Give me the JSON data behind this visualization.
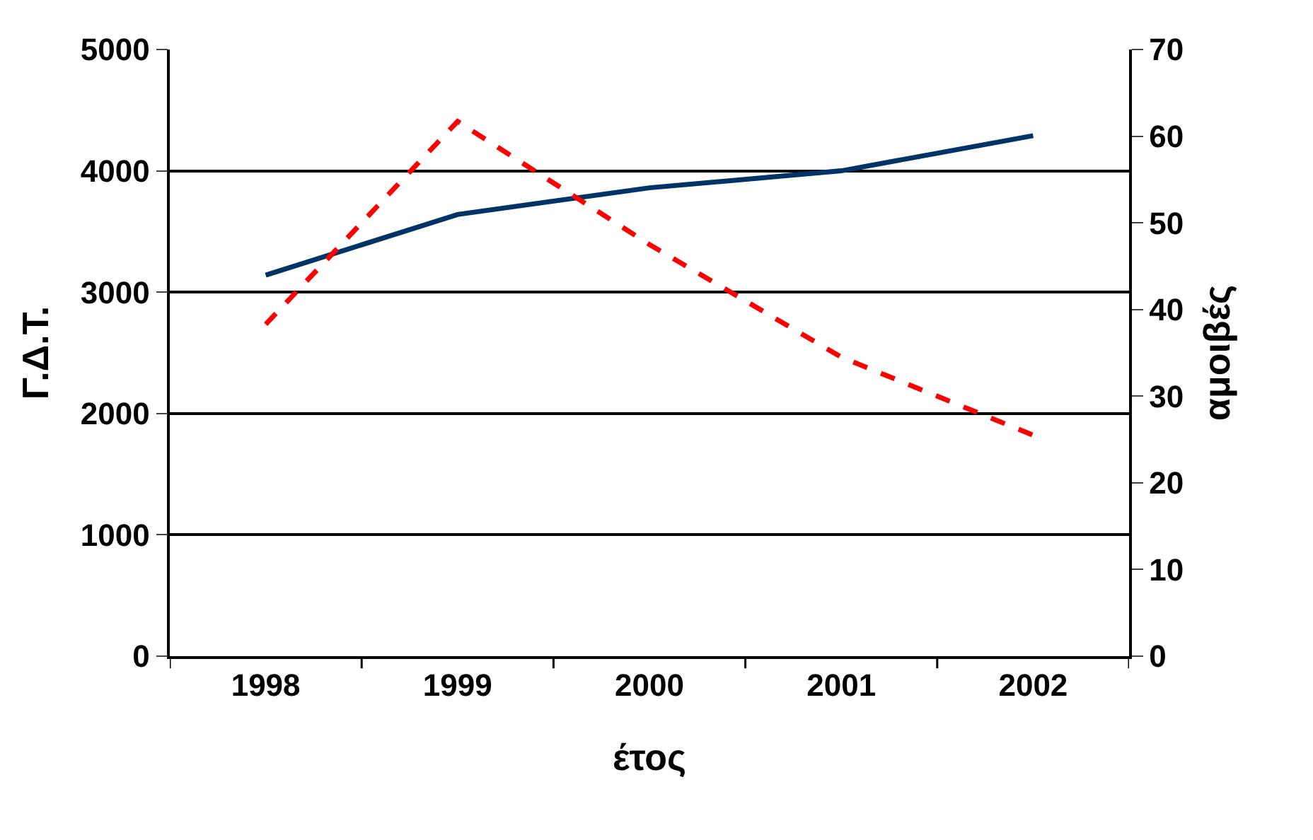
{
  "chart_data": {
    "type": "line",
    "xlabel": "έτος",
    "ylabel": "Γ.Δ.Τ.",
    "y2label": "αμοιβές",
    "categories": [
      "1998",
      "1999",
      "2000",
      "2001",
      "2002"
    ],
    "series": [
      {
        "color": "#003366",
        "line_style": "solid",
        "values": [
          3140,
          3640,
          3860,
          4000,
          4290
        ]
      },
      {
        "color": "#ff0000",
        "line_style": "dashed",
        "axis": "y2",
        "values": [
          38.3,
          61.7,
          47.5,
          34.5,
          25.5
        ]
      }
    ],
    "ylim": [
      0,
      5000
    ],
    "yticks": [
      0,
      1000,
      2000,
      3000,
      4000,
      5000
    ],
    "y2lim": [
      0,
      70
    ],
    "y2ticks": [
      0,
      10,
      20,
      30,
      40,
      50,
      60,
      70
    ],
    "grid": "y",
    "legend": false,
    "marker": "none"
  }
}
